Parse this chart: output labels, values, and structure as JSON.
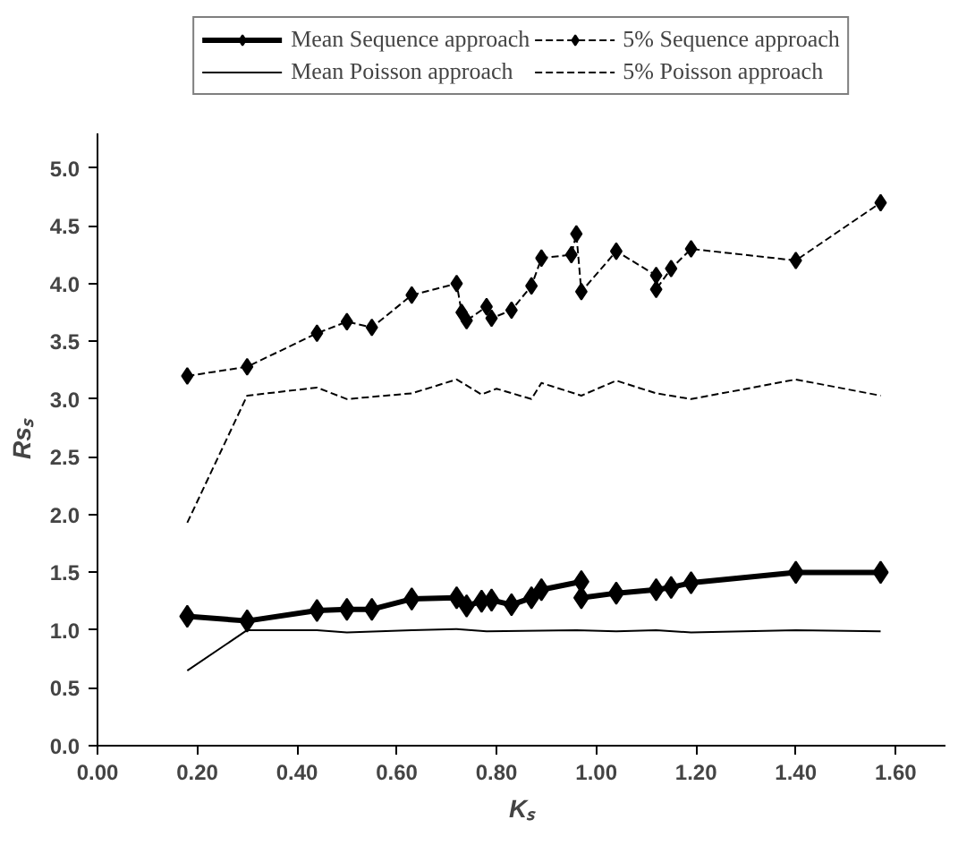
{
  "chart_data": {
    "type": "line",
    "xlabel": "Kₛ",
    "ylabel": "Rsₛ",
    "xlim": [
      0,
      1.7
    ],
    "ylim": [
      0,
      5.3
    ],
    "xticks": [
      {
        "value": 0,
        "label": "0.00"
      },
      {
        "value": 0.2,
        "label": "0.20"
      },
      {
        "value": 0.4,
        "label": "0.40"
      },
      {
        "value": 0.6,
        "label": "0.60"
      },
      {
        "value": 0.8,
        "label": "0.80"
      },
      {
        "value": 1.0,
        "label": "1.00"
      },
      {
        "value": 1.2,
        "label": "1.20"
      },
      {
        "value": 1.4,
        "label": "1.40"
      },
      {
        "value": 1.6,
        "label": "1.60"
      }
    ],
    "yticks": [
      {
        "value": 0,
        "label": "0.0"
      },
      0.5,
      {
        "value": 1,
        "label": "1.0"
      },
      1.5,
      {
        "value": 2,
        "label": "2.0"
      },
      2.5,
      {
        "value": 3,
        "label": "3.0"
      },
      3.5,
      {
        "value": 4,
        "label": "4.0"
      },
      4.5,
      {
        "value": 5,
        "label": "5.0"
      }
    ],
    "grid": false,
    "legend": "top",
    "series": [
      {
        "name": "Mean Sequence approach",
        "color": "#000000",
        "marker": "diamond",
        "line_style": "solid",
        "x": [
          0.18,
          0.3,
          0.44,
          0.5,
          0.55,
          0.63,
          0.72,
          0.74,
          0.77,
          0.79,
          0.83,
          0.87,
          0.89,
          0.97,
          0.97,
          1.04,
          1.12,
          1.15,
          1.19,
          1.4,
          1.57
        ],
        "values": [
          1.12,
          1.08,
          1.17,
          1.18,
          1.18,
          1.27,
          1.28,
          1.21,
          1.25,
          1.26,
          1.22,
          1.28,
          1.35,
          1.42,
          1.28,
          1.32,
          1.35,
          1.37,
          1.41,
          1.5,
          1.5
        ]
      },
      {
        "name": "Mean Poisson approach",
        "color": "#000000",
        "marker": "none",
        "line_style": "solid",
        "x": [
          0.18,
          0.3,
          0.44,
          0.5,
          0.63,
          0.72,
          0.78,
          0.96,
          1.04,
          1.12,
          1.19,
          1.4,
          1.57
        ],
        "values": [
          0.65,
          1.0,
          1.0,
          0.98,
          1.0,
          1.01,
          0.99,
          1.0,
          0.99,
          1.0,
          0.98,
          1.0,
          0.99
        ]
      },
      {
        "name": "5% Sequence approach",
        "color": "#000000",
        "marker": "diamond",
        "line_style": "dashed",
        "x": [
          0.18,
          0.3,
          0.44,
          0.5,
          0.55,
          0.63,
          0.72,
          0.73,
          0.74,
          0.78,
          0.79,
          0.83,
          0.87,
          0.89,
          0.95,
          0.96,
          0.97,
          1.04,
          1.12,
          1.12,
          1.15,
          1.19,
          1.4,
          1.57
        ],
        "values": [
          3.2,
          3.28,
          3.57,
          3.67,
          3.62,
          3.9,
          4.0,
          3.75,
          3.68,
          3.8,
          3.7,
          3.77,
          3.98,
          4.22,
          4.25,
          4.43,
          3.93,
          4.28,
          4.07,
          3.95,
          4.13,
          4.3,
          4.2,
          4.7
        ]
      },
      {
        "name": "5% Poisson approach",
        "color": "#000000",
        "marker": "none",
        "line_style": "dashed",
        "x": [
          0.18,
          0.3,
          0.44,
          0.5,
          0.63,
          0.72,
          0.77,
          0.8,
          0.87,
          0.89,
          0.97,
          1.04,
          1.12,
          1.19,
          1.4,
          1.57
        ],
        "values": [
          1.93,
          3.03,
          3.1,
          3.0,
          3.05,
          3.17,
          3.04,
          3.09,
          3.0,
          3.14,
          3.03,
          3.16,
          3.05,
          3.0,
          3.17,
          3.03
        ]
      }
    ]
  }
}
